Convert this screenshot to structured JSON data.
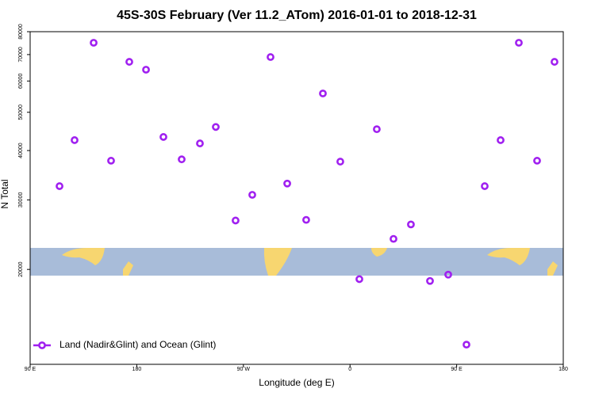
{
  "chart_data": {
    "type": "scatter",
    "title": "45S-30S February (Ver 11.2_ATom)   2016-01-01 to 2018-12-31",
    "x_label": "Longitude (deg E)",
    "y_label": "N Total",
    "legend_position": "bottom-left",
    "log_y": true,
    "xlim": [
      90,
      540
    ],
    "ylim": [
      11500,
      80000
    ],
    "xticks": [
      {
        "value": 90,
        "label": "90 E"
      },
      {
        "value": 180,
        "label": "180"
      },
      {
        "value": 270,
        "label": "90 W"
      },
      {
        "value": 360,
        "label": "0"
      },
      {
        "value": 450,
        "label": "90 E"
      },
      {
        "value": 540,
        "label": "180"
      }
    ],
    "yticks": [
      20000,
      30000,
      40000,
      50000,
      60000,
      70000,
      80000
    ],
    "series": [
      {
        "name": "Land (Nadir&Glint) and Ocean (Glint)",
        "color": "#a020f0",
        "x": [
          114.8,
          127.5,
          143.6,
          158.3,
          173.7,
          187.8,
          202.5,
          217.9,
          233.3,
          246.7,
          263.4,
          277.5,
          292.9,
          307,
          323,
          337.1,
          351.8,
          367.9,
          382.6,
          396.7,
          411.4,
          427.5,
          442.9,
          458.3,
          473.7,
          487.1,
          502.5,
          517.9,
          532.6
        ],
        "values": [
          32500,
          42500,
          75000,
          37700,
          67100,
          64100,
          43300,
          38000,
          41700,
          45900,
          26600,
          30900,
          69000,
          33000,
          26700,
          55800,
          37500,
          18900,
          45300,
          23900,
          26000,
          18700,
          19400,
          12900,
          32500,
          42500,
          75000,
          37700,
          67100
        ]
      }
    ]
  }
}
